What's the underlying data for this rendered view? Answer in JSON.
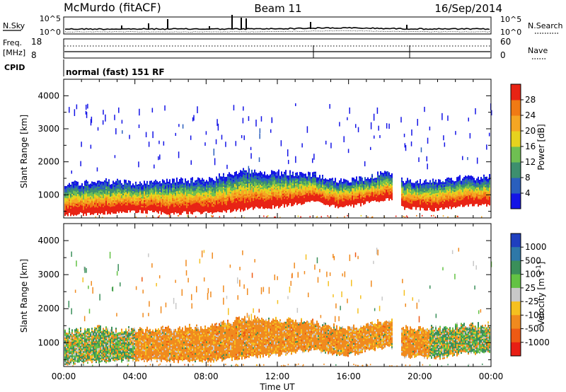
{
  "header": {
    "station": "McMurdo (fitACF)",
    "beam": "Beam 11",
    "date": "16/Sep/2014"
  },
  "panels": {
    "nsky_label": "N.Sky",
    "nsky_hi": "10^5",
    "nsky_lo": "10^0",
    "nsearch_label": "N.Search",
    "nsearch_hi": "10^5",
    "nsearch_lo": "10^0",
    "freq_label_1": "Freq.",
    "freq_label_2": "[MHz]",
    "freq_hi": "18",
    "freq_lo": "8",
    "nave_label": "Nave",
    "nave_hi": "60",
    "nave_lo": "0",
    "cpid_label": "CPID",
    "cpid_value": "normal (fast) 151 RF"
  },
  "chart_data": [
    {
      "type": "heatmap",
      "name": "power",
      "xlabel": "",
      "ylabel": "Slant Range [km]",
      "x_range_hours": [
        0,
        24
      ],
      "ylim": [
        300,
        4500
      ],
      "y_ticks": [
        "1000",
        "2000",
        "3000",
        "4000"
      ],
      "colorbar_label": "Power [dB]",
      "colorbar_ticks": [
        "4",
        "8",
        "12",
        "16",
        "20",
        "24",
        "28"
      ],
      "colorbar_colors": [
        "#1414e6",
        "#2a5fbd",
        "#3d8f6e",
        "#6fbf52",
        "#e6d21e",
        "#f5a623",
        "#f07a14",
        "#e82314"
      ],
      "band": [
        {
          "h": 0,
          "lo": 400,
          "hi": 1300
        },
        {
          "h": 2,
          "lo": 450,
          "hi": 1400
        },
        {
          "h": 4,
          "lo": 500,
          "hi": 1350
        },
        {
          "h": 6,
          "lo": 450,
          "hi": 1400
        },
        {
          "h": 8,
          "lo": 450,
          "hi": 1450
        },
        {
          "h": 10,
          "lo": 550,
          "hi": 1700
        },
        {
          "h": 12,
          "lo": 650,
          "hi": 1650
        },
        {
          "h": 14,
          "lo": 800,
          "hi": 1600
        },
        {
          "h": 15.5,
          "lo": 600,
          "hi": 1400
        },
        {
          "h": 17,
          "lo": 750,
          "hi": 1500
        },
        {
          "h": 18.2,
          "lo": 900,
          "hi": 1700
        },
        {
          "h": 19,
          "lo": 600,
          "hi": 1400
        },
        {
          "h": 21,
          "lo": 550,
          "hi": 1400
        },
        {
          "h": 22.5,
          "lo": 700,
          "hi": 1500
        },
        {
          "h": 24,
          "lo": 700,
          "hi": 1500
        }
      ],
      "gap_hours": [
        18.4,
        18.9
      ]
    },
    {
      "type": "heatmap",
      "name": "velocity",
      "xlabel": "Time UT",
      "ylabel": "Slant Range [km]",
      "x_range_hours": [
        0,
        24
      ],
      "x_ticks": [
        "00:00",
        "04:00",
        "08:00",
        "12:00",
        "16:00",
        "20:00",
        "00:00"
      ],
      "ylim": [
        300,
        4500
      ],
      "y_ticks": [
        "1000",
        "2000",
        "3000",
        "4000"
      ],
      "colorbar_label": "Velocity [m s^-1]",
      "colorbar_ticks": [
        "1000",
        "500",
        "100",
        "25",
        "-25",
        "-100",
        "-500",
        "-1000"
      ],
      "colorbar_colors": [
        "#1f3fbf",
        "#2e78a8",
        "#3a8f5a",
        "#63c244",
        "#c8c8c8",
        "#f5c020",
        "#f08a1e",
        "#ee5a14",
        "#e81e14"
      ]
    }
  ]
}
